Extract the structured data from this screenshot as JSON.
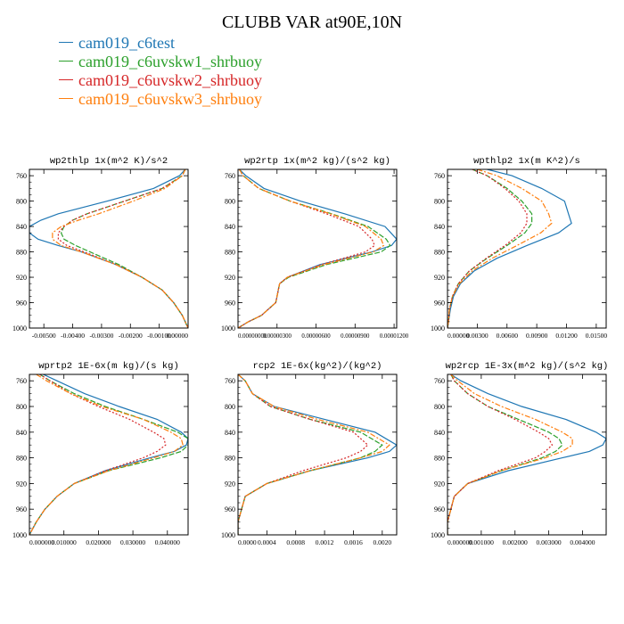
{
  "title": "CLUBB VAR at90E,10N",
  "legend": [
    {
      "name": "cam019_c6test",
      "color": "#1f77b4",
      "dash": ""
    },
    {
      "name": "cam019_c6uvskw1_shrbuoy",
      "color": "#2ca02c",
      "dash": "6,2"
    },
    {
      "name": "cam019_c6uvskw2_shrbuoy",
      "color": "#d62728",
      "dash": "2,2"
    },
    {
      "name": "cam019_c6uvskw3_shrbuoy",
      "color": "#ff7f0e",
      "dash": "6,2,2,2"
    }
  ],
  "chart_data": [
    {
      "type": "line",
      "title": "wp2thlp  1x(m^2 K)/s^2",
      "ylim": [
        1000,
        750
      ],
      "yticks": [
        760,
        800,
        840,
        880,
        920,
        960,
        1000
      ],
      "xlim": [
        -0.0055,
        0.0
      ],
      "xticks": [
        -0.005,
        -0.004,
        -0.003,
        -0.002,
        -0.001,
        0.0
      ],
      "xticklabels": [
        "-0.00500",
        "-0.00400",
        "-0.00300",
        "-0.00200",
        "-0.00100",
        "0.00000"
      ],
      "xtick_font": 7.5,
      "y": [
        750,
        760,
        780,
        800,
        820,
        830,
        840,
        850,
        860,
        870,
        880,
        900,
        920,
        940,
        960,
        980,
        1000
      ],
      "series": [
        {
          "name": "cam019_c6test",
          "values": [
            -0.0001,
            -0.0003,
            -0.0012,
            -0.0028,
            -0.0045,
            -0.0051,
            -0.0055,
            -0.0055,
            -0.0052,
            -0.0045,
            -0.0037,
            -0.0025,
            -0.0016,
            -0.0009,
            -0.0005,
            -0.0002,
            0.0
          ]
        },
        {
          "name": "cam019_c6uvskw1_shrbuoy",
          "values": [
            -0.0001,
            -0.0002,
            -0.0009,
            -0.0022,
            -0.0035,
            -0.004,
            -0.0043,
            -0.0044,
            -0.0043,
            -0.0039,
            -0.0034,
            -0.0024,
            -0.0016,
            -0.0009,
            -0.0005,
            -0.0002,
            0.0
          ]
        },
        {
          "name": "cam019_c6uvskw2_shrbuoy",
          "values": [
            -0.0001,
            -0.0002,
            -0.0009,
            -0.0022,
            -0.0035,
            -0.004,
            -0.0043,
            -0.0045,
            -0.0045,
            -0.0042,
            -0.0036,
            -0.0025,
            -0.0016,
            -0.0009,
            -0.0005,
            -0.0002,
            0.0
          ]
        },
        {
          "name": "cam019_c6uvskw3_shrbuoy",
          "values": [
            -0.0001,
            -0.0002,
            -0.0008,
            -0.0019,
            -0.0031,
            -0.0038,
            -0.0044,
            -0.0047,
            -0.0047,
            -0.0044,
            -0.0037,
            -0.0025,
            -0.0016,
            -0.0009,
            -0.0005,
            -0.0002,
            0.0
          ]
        }
      ]
    },
    {
      "type": "line",
      "title": "wp2rtp  1x(m^2 kg)/(s^2 kg)",
      "ylim": [
        1000,
        750
      ],
      "yticks": [
        760,
        800,
        840,
        880,
        920,
        960,
        1000
      ],
      "xlim": [
        0.0,
        1.22e-05
      ],
      "xticks": [
        0.0,
        3e-06,
        6e-06,
        9e-06,
        1.2e-05
      ],
      "xticklabels": [
        "0.00000000",
        "0.00000300",
        "0.00000600",
        "0.00000900",
        "0.00001200"
      ],
      "xtick_font": 6.8,
      "y": [
        750,
        760,
        780,
        800,
        820,
        840,
        860,
        870,
        880,
        900,
        920,
        930,
        940,
        950,
        960,
        980,
        990,
        1000
      ],
      "series": [
        {
          "name": "cam019_c6test",
          "values": [
            1e-07,
            6e-07,
            2e-06,
            4.8e-06,
            8.2e-06,
            1.13e-05,
            1.22e-05,
            1.18e-05,
            1.03e-05,
            6.3e-06,
            3.8e-06,
            3.2e-06,
            3.1e-06,
            3e-06,
            2.9e-06,
            1.8e-06,
            8e-07,
            0.0
          ]
        },
        {
          "name": "cam019_c6uvskw1_shrbuoy",
          "values": [
            1e-07,
            4e-07,
            1.6e-06,
            4e-06,
            7.2e-06,
            1e-05,
            1.14e-05,
            1.17e-05,
            1.1e-05,
            6.8e-06,
            3.9e-06,
            3.2e-06,
            3.1e-06,
            3e-06,
            2.9e-06,
            1.8e-06,
            8e-07,
            0.0
          ]
        },
        {
          "name": "cam019_c6uvskw2_shrbuoy",
          "values": [
            1e-07,
            4e-07,
            1.6e-06,
            4e-06,
            6.8e-06,
            9.3e-06,
            1.03e-05,
            1.05e-05,
            9.8e-06,
            6.4e-06,
            3.8e-06,
            3.2e-06,
            3.1e-06,
            3e-06,
            2.9e-06,
            1.8e-06,
            8e-07,
            0.0
          ]
        },
        {
          "name": "cam019_c6uvskw3_shrbuoy",
          "values": [
            1e-07,
            4e-07,
            1.6e-06,
            4e-06,
            7.1e-06,
            9.8e-06,
            1.1e-05,
            1.12e-05,
            1.04e-05,
            6.6e-06,
            3.8e-06,
            3.2e-06,
            3.1e-06,
            3e-06,
            2.9e-06,
            1.8e-06,
            8e-07,
            0.0
          ]
        }
      ]
    },
    {
      "type": "line",
      "title": "wpthlp2  1x(m K^2)/s",
      "ylim": [
        1000,
        750
      ],
      "yticks": [
        760,
        800,
        840,
        880,
        920,
        960,
        1000
      ],
      "xlim": [
        0.0,
        0.016
      ],
      "xticks": [
        0.0,
        0.003,
        0.006,
        0.009,
        0.012,
        0.015
      ],
      "xticklabels": [
        "0.00000",
        "0.00300",
        "0.00600",
        "0.00900",
        "0.01200",
        "0.01500"
      ],
      "xtick_font": 7.5,
      "y": [
        750,
        760,
        780,
        800,
        820,
        835,
        850,
        870,
        890,
        910,
        930,
        950,
        970,
        990,
        1000
      ],
      "series": [
        {
          "name": "cam019_c6test",
          "values": [
            0.004,
            0.0065,
            0.0095,
            0.0118,
            0.0122,
            0.0125,
            0.0112,
            0.008,
            0.005,
            0.0027,
            0.0013,
            0.0006,
            0.0003,
            0.0001,
            0.0
          ]
        },
        {
          "name": "cam019_c6uvskw1_shrbuoy",
          "values": [
            0.0025,
            0.004,
            0.006,
            0.0075,
            0.0085,
            0.0085,
            0.0078,
            0.006,
            0.004,
            0.0022,
            0.0011,
            0.0005,
            0.0002,
            0.0001,
            0.0
          ]
        },
        {
          "name": "cam019_c6uvskw2_shrbuoy",
          "values": [
            0.0025,
            0.004,
            0.0058,
            0.0072,
            0.008,
            0.008,
            0.0074,
            0.0058,
            0.0039,
            0.0022,
            0.0011,
            0.0005,
            0.0002,
            0.0001,
            0.0
          ]
        },
        {
          "name": "cam019_c6uvskw3_shrbuoy",
          "values": [
            0.003,
            0.005,
            0.0075,
            0.0095,
            0.0102,
            0.0105,
            0.0094,
            0.007,
            0.0045,
            0.0025,
            0.0012,
            0.0005,
            0.0002,
            0.0001,
            0.0
          ]
        }
      ]
    },
    {
      "type": "line",
      "title": "wprtp2  1E-6x(m kg)/(s kg)",
      "ylim": [
        1000,
        750
      ],
      "yticks": [
        760,
        800,
        840,
        880,
        920,
        960,
        1000
      ],
      "xlim": [
        0.0,
        0.046
      ],
      "xticks": [
        0.0,
        0.01,
        0.02,
        0.03,
        0.04
      ],
      "xticklabels": [
        "0.000000",
        "0.010000",
        "0.020000",
        "0.030000",
        "0.040000"
      ],
      "xtick_font": 7.5,
      "y": [
        750,
        760,
        780,
        800,
        820,
        840,
        850,
        860,
        870,
        880,
        900,
        920,
        940,
        960,
        980,
        1000
      ],
      "series": [
        {
          "name": "cam019_c6test",
          "values": [
            0.004,
            0.008,
            0.016,
            0.026,
            0.037,
            0.044,
            0.046,
            0.0455,
            0.042,
            0.035,
            0.022,
            0.013,
            0.008,
            0.0045,
            0.002,
            0.0
          ]
        },
        {
          "name": "cam019_c6uvskw1_shrbuoy",
          "values": [
            0.003,
            0.006,
            0.013,
            0.022,
            0.033,
            0.043,
            0.046,
            0.046,
            0.044,
            0.038,
            0.023,
            0.013,
            0.008,
            0.0045,
            0.002,
            0.0
          ]
        },
        {
          "name": "cam019_c6uvskw2_shrbuoy",
          "values": [
            0.003,
            0.006,
            0.012,
            0.02,
            0.029,
            0.036,
            0.039,
            0.0395,
            0.037,
            0.033,
            0.022,
            0.013,
            0.008,
            0.0045,
            0.002,
            0.0
          ]
        },
        {
          "name": "cam019_c6uvskw3_shrbuoy",
          "values": [
            0.002,
            0.005,
            0.012,
            0.021,
            0.033,
            0.041,
            0.044,
            0.0445,
            0.042,
            0.036,
            0.023,
            0.013,
            0.008,
            0.0045,
            0.002,
            0.0
          ]
        }
      ]
    },
    {
      "type": "line",
      "title": "rcp2  1E-6x(kg^2)/(kg^2)",
      "ylim": [
        1000,
        750
      ],
      "yticks": [
        760,
        800,
        840,
        880,
        920,
        960,
        1000
      ],
      "xlim": [
        0.0,
        0.0022
      ],
      "xticks": [
        0.0,
        0.0004,
        0.0008,
        0.0012,
        0.0016,
        0.002
      ],
      "xticklabels": [
        "0.0000",
        "0.0004",
        "0.0008",
        "0.0012",
        "0.0016",
        "0.0020"
      ],
      "xtick_font": 7.5,
      "y": [
        750,
        760,
        780,
        800,
        820,
        840,
        860,
        870,
        880,
        900,
        920,
        940,
        960,
        980,
        1000
      ],
      "series": [
        {
          "name": "cam019_c6test",
          "values": [
            0.0,
            0.0001,
            0.0002,
            0.0005,
            0.0012,
            0.0019,
            0.0022,
            0.0021,
            0.0018,
            0.001,
            0.0004,
            0.0001,
            5e-05,
            0.0,
            0.0
          ]
        },
        {
          "name": "cam019_c6uvskw1_shrbuoy",
          "values": [
            0.0,
            0.0001,
            0.0002,
            0.00045,
            0.001,
            0.0017,
            0.002,
            0.0019,
            0.0017,
            0.001,
            0.0004,
            0.0001,
            5e-05,
            0.0,
            0.0
          ]
        },
        {
          "name": "cam019_c6uvskw2_shrbuoy",
          "values": [
            0.0,
            0.0001,
            0.0002,
            0.00045,
            0.001,
            0.0016,
            0.0018,
            0.0017,
            0.0015,
            0.0009,
            0.0004,
            0.0001,
            5e-05,
            0.0,
            0.0
          ]
        },
        {
          "name": "cam019_c6uvskw3_shrbuoy",
          "values": [
            0.0,
            0.0001,
            0.0002,
            0.0005,
            0.0011,
            0.0018,
            0.0021,
            0.002,
            0.0017,
            0.001,
            0.0004,
            0.0001,
            5e-05,
            0.0,
            0.0
          ]
        }
      ]
    },
    {
      "type": "line",
      "title": "wp2rcp  1E-3x(m^2 kg)/(s^2 kg)",
      "ylim": [
        1000,
        750
      ],
      "yticks": [
        760,
        800,
        840,
        880,
        920,
        960,
        1000
      ],
      "xlim": [
        0.0,
        0.0047
      ],
      "xticks": [
        0.0,
        0.001,
        0.002,
        0.003,
        0.004
      ],
      "xticklabels": [
        "0.000000",
        "0.001000",
        "0.002000",
        "0.003000",
        "0.004000"
      ],
      "xtick_font": 7.5,
      "y": [
        750,
        760,
        780,
        800,
        820,
        840,
        850,
        860,
        870,
        880,
        900,
        920,
        940,
        960,
        980,
        1000
      ],
      "series": [
        {
          "name": "cam019_c6test",
          "values": [
            0.0001,
            0.0004,
            0.0012,
            0.0022,
            0.0035,
            0.0044,
            0.0047,
            0.0046,
            0.0042,
            0.0034,
            0.0018,
            0.0006,
            0.0002,
            0.0001,
            0.0,
            0.0
          ]
        },
        {
          "name": "cam019_c6uvskw1_shrbuoy",
          "values": [
            0.0001,
            0.0002,
            0.0006,
            0.0012,
            0.0021,
            0.003,
            0.0033,
            0.0034,
            0.0032,
            0.0028,
            0.0016,
            0.0006,
            0.0002,
            0.0001,
            0.0,
            0.0
          ]
        },
        {
          "name": "cam019_c6uvskw2_shrbuoy",
          "values": [
            0.0001,
            0.0002,
            0.0006,
            0.0012,
            0.002,
            0.0027,
            0.003,
            0.0031,
            0.0029,
            0.0026,
            0.0015,
            0.0006,
            0.0002,
            0.0001,
            0.0,
            0.0
          ]
        },
        {
          "name": "cam019_c6uvskw3_shrbuoy",
          "values": [
            0.0001,
            0.0003,
            0.0008,
            0.0016,
            0.0026,
            0.0034,
            0.0037,
            0.0037,
            0.0034,
            0.0029,
            0.0016,
            0.0006,
            0.0002,
            0.0001,
            0.0,
            0.0
          ]
        }
      ]
    }
  ]
}
